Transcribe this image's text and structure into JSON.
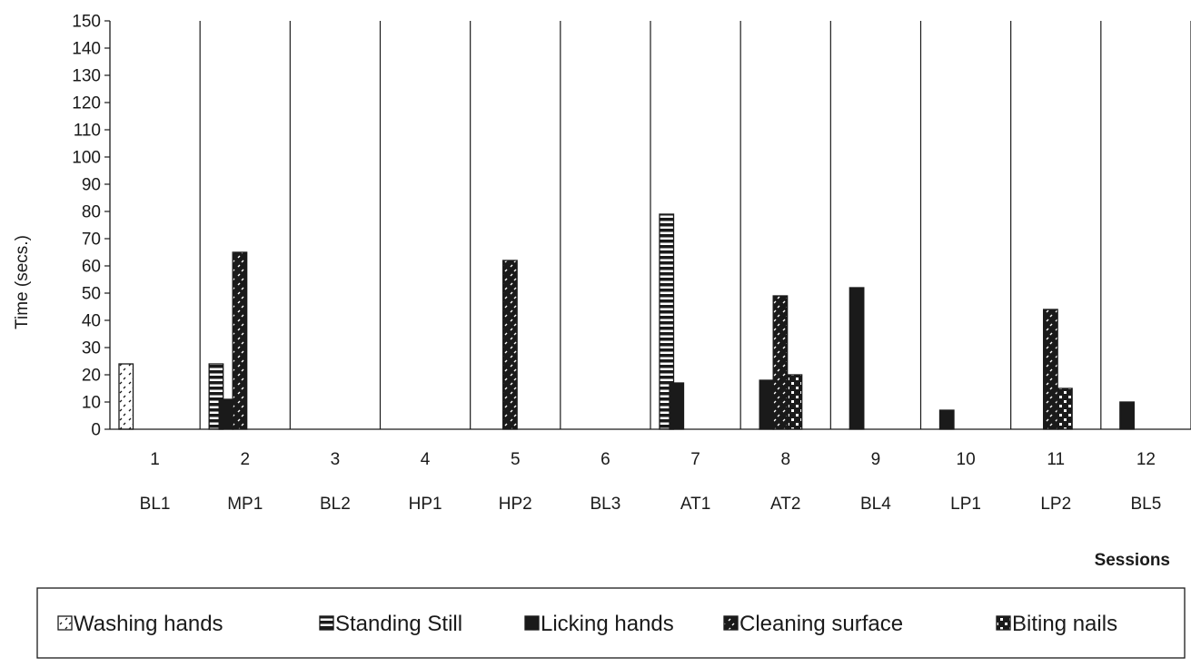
{
  "chart_data": {
    "type": "bar",
    "title": "",
    "xlabel": "Sessions",
    "ylabel": "Time (secs.)",
    "ylim": [
      0,
      150
    ],
    "ytick_step": 10,
    "grid": "vertical separators between sessions",
    "legend_position": "bottom",
    "session_numbers": [
      "1",
      "2",
      "3",
      "4",
      "5",
      "6",
      "7",
      "8",
      "9",
      "10",
      "11",
      "12"
    ],
    "categories": [
      "BL1",
      "MP1",
      "BL2",
      "HP1",
      "HP2",
      "BL3",
      "AT1",
      "AT2",
      "BL4",
      "LP1",
      "LP2",
      "BL5"
    ],
    "series": [
      {
        "name": "Washing hands",
        "pattern": "dots",
        "values": [
          24,
          0,
          0,
          0,
          0,
          0,
          0,
          0,
          0,
          0,
          0,
          0
        ]
      },
      {
        "name": "Standing Still",
        "pattern": "hstripes",
        "values": [
          0,
          24,
          0,
          0,
          0,
          0,
          79,
          0,
          0,
          0,
          0,
          0
        ]
      },
      {
        "name": "Licking hands",
        "pattern": "solid",
        "values": [
          0,
          11,
          0,
          0,
          0,
          0,
          17,
          18,
          52,
          7,
          0,
          10
        ]
      },
      {
        "name": "Cleaning surface",
        "pattern": "darkdots",
        "values": [
          0,
          65,
          0,
          0,
          62,
          0,
          0,
          49,
          0,
          0,
          44,
          0
        ]
      },
      {
        "name": "Biting nails",
        "pattern": "checker",
        "values": [
          0,
          0,
          0,
          0,
          0,
          0,
          0,
          20,
          0,
          0,
          15,
          0
        ]
      }
    ]
  }
}
